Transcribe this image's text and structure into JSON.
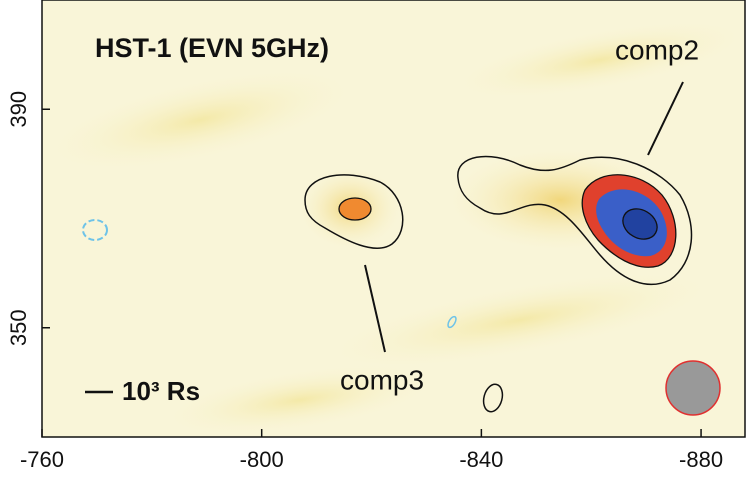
{
  "chart_data": {
    "type": "image",
    "title": "HST-1 (EVN 5GHz)",
    "annotations": [
      "comp2",
      "comp3"
    ],
    "scale_label": "10³ Rs",
    "xlim": [
      -760,
      -888
    ],
    "ylim": [
      330,
      410
    ],
    "xticks": [
      -760,
      -800,
      -840,
      -880
    ],
    "yticks": [
      350,
      390
    ]
  }
}
